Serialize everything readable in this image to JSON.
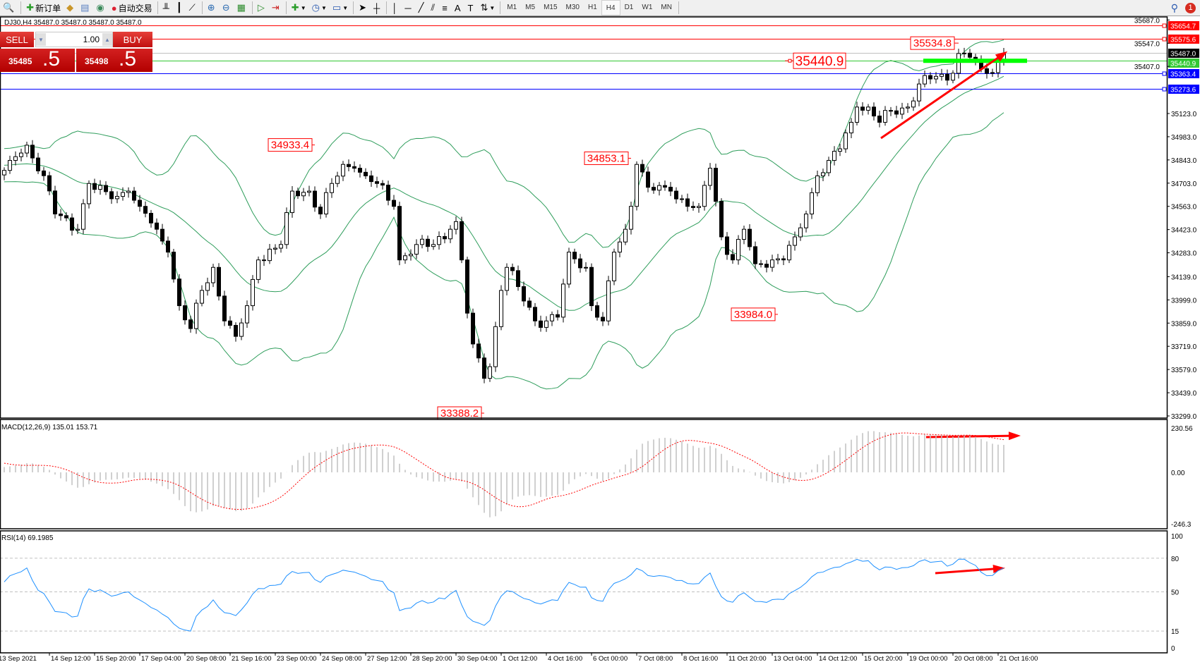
{
  "toolbar": {
    "new_order": "新订单",
    "auto_trading": "自动交易",
    "timeframes": [
      "M1",
      "M5",
      "M15",
      "M30",
      "H1",
      "H4",
      "D1",
      "W1",
      "MN"
    ],
    "active_timeframe": "H4",
    "notification_count": "1"
  },
  "chart": {
    "info": "DJ30,H4  35487.0 35487.0 35487.0 35487.0",
    "one_click": {
      "sell_label": "SELL",
      "buy_label": "BUY",
      "lot": "1.00",
      "sell_price_main": "35485",
      "sell_price_big": ".5",
      "buy_price_main": "35498",
      "buy_price_big": ".5"
    },
    "macd_label": "MACD(12,26,9) 135.01 153.71",
    "rsi_label": "RSI(14) 69.1985",
    "colors": {
      "bull": "#ffffff",
      "bear": "#000000",
      "bands": "#2e9d5b",
      "macd_hist": "#c0c0c0",
      "macd_signal": "#ff0000",
      "rsi": "#1e90ff",
      "arrow": "#ff0000",
      "highlight": "#00ff00"
    }
  },
  "chart_data": {
    "type": "candlestick",
    "symbol": "DJ30",
    "timeframe": "H4",
    "price_axis_ticks": [
      "35687.0",
      "35547.0",
      "35407.0",
      "35123.0",
      "34983.0",
      "34843.0",
      "34703.0",
      "34563.0",
      "34423.0",
      "34283.0",
      "34139.0",
      "33999.0",
      "33859.0",
      "33719.0",
      "33579.0",
      "33439.0",
      "33299.0"
    ],
    "price_range": [
      33299,
      35687
    ],
    "time_labels": [
      "13 Sep 2021",
      "14 Sep 12:00",
      "15 Sep 20:00",
      "17 Sep 04:00",
      "20 Sep 08:00",
      "21 Sep 16:00",
      "23 Sep 00:00",
      "24 Sep 08:00",
      "27 Sep 12:00",
      "28 Sep 20:00",
      "30 Sep 04:00",
      "1 Oct 12:00",
      "4 Oct 16:00",
      "6 Oct 00:00",
      "7 Oct 08:00",
      "8 Oct 16:00",
      "11 Oct 20:00",
      "13 Oct 04:00",
      "14 Oct 12:00",
      "15 Oct 20:00",
      "19 Oct 00:00",
      "20 Oct 08:00",
      "21 Oct 16:00"
    ],
    "bars_per_time_label": 8,
    "price_path": [
      [
        -30,
        34500
      ],
      [
        -15,
        34900
      ],
      [
        -5,
        34750
      ],
      [
        0,
        34780
      ],
      [
        1,
        34840
      ],
      [
        4,
        34932
      ],
      [
        7,
        34748
      ],
      [
        9,
        34517
      ],
      [
        13,
        34425
      ],
      [
        15,
        34701
      ],
      [
        19,
        34609
      ],
      [
        22,
        34655
      ],
      [
        24,
        34563
      ],
      [
        27,
        34425
      ],
      [
        29,
        34287
      ],
      [
        31,
        33964
      ],
      [
        33,
        33826
      ],
      [
        35,
        34056
      ],
      [
        37,
        34195
      ],
      [
        39,
        33872
      ],
      [
        41,
        33779
      ],
      [
        43,
        33964
      ],
      [
        45,
        34240
      ],
      [
        49,
        34333
      ],
      [
        51,
        34655
      ],
      [
        54,
        34655
      ],
      [
        56,
        34517
      ],
      [
        58,
        34701
      ],
      [
        60,
        34816
      ],
      [
        62,
        34793
      ],
      [
        64,
        34747
      ],
      [
        66,
        34701
      ],
      [
        69,
        34563
      ],
      [
        70,
        34240
      ],
      [
        73,
        34333
      ],
      [
        76,
        34333
      ],
      [
        79,
        34425
      ],
      [
        80,
        34471
      ],
      [
        81,
        34240
      ],
      [
        82,
        33919
      ],
      [
        83,
        33733
      ],
      [
        85,
        33526
      ],
      [
        86,
        33596
      ],
      [
        88,
        34056
      ],
      [
        89,
        34195
      ],
      [
        91,
        34079
      ],
      [
        94,
        33872
      ],
      [
        96,
        33872
      ],
      [
        98,
        33895
      ],
      [
        100,
        34287
      ],
      [
        103,
        34195
      ],
      [
        104,
        33964
      ],
      [
        106,
        33872
      ],
      [
        108,
        34287
      ],
      [
        110,
        34425
      ],
      [
        111,
        34563
      ],
      [
        112,
        34816
      ],
      [
        114,
        34678
      ],
      [
        118,
        34655
      ],
      [
        121,
        34563
      ],
      [
        123,
        34563
      ],
      [
        125,
        34793
      ],
      [
        127,
        34379
      ],
      [
        129,
        34240
      ],
      [
        131,
        34425
      ],
      [
        133,
        34217
      ],
      [
        136,
        34240
      ],
      [
        138,
        34240
      ],
      [
        140,
        34379
      ],
      [
        142,
        34517
      ],
      [
        144,
        34747
      ],
      [
        146,
        34840
      ],
      [
        148,
        34910
      ],
      [
        150,
        35070
      ],
      [
        151,
        35162
      ],
      [
        153,
        35162
      ],
      [
        155,
        35070
      ],
      [
        157,
        35139
      ],
      [
        160,
        35162
      ],
      [
        162,
        35301
      ],
      [
        165,
        35347
      ],
      [
        167,
        35324
      ],
      [
        169,
        35485
      ],
      [
        171,
        35462
      ],
      [
        173,
        35393
      ],
      [
        175,
        35370
      ],
      [
        177,
        35487
      ]
    ],
    "indicators": {
      "bollinger_bands": {
        "period": 20,
        "deviation": 2
      },
      "macd": {
        "fast": 12,
        "slow": 26,
        "signal": 9,
        "value": 135.01,
        "signal_value": 153.71,
        "axis": [
          "230.56",
          "0.00",
          "-246.3"
        ],
        "range": [
          -246.3,
          230.56
        ]
      },
      "rsi": {
        "period": 14,
        "value": 69.1985,
        "levels": [
          "80",
          "50",
          "15"
        ],
        "axis": [
          "100",
          "80",
          "50",
          "15",
          "0"
        ]
      }
    },
    "horizontal_lines": [
      {
        "price": "35654.7",
        "color": "#ff0000",
        "marker": true
      },
      {
        "price": "35575.6",
        "color": "#ff0000",
        "marker": true
      },
      {
        "price": "35487.0",
        "color": "#000000",
        "line": "#c0c0c0",
        "marker": false
      },
      {
        "price": "35440.9",
        "color": "#32c832",
        "line": "#32c832",
        "marker": false
      },
      {
        "price": "35363.4",
        "color": "#0000ff",
        "marker": true
      },
      {
        "price": "35273.6",
        "color": "#0000ff",
        "marker": true
      }
    ],
    "price_annotations": [
      {
        "text": "34933.4",
        "bar": 55
      },
      {
        "text": "34853.1",
        "bar": 111
      },
      {
        "text": "33388.2",
        "bar": 85
      },
      {
        "text": "33984.0",
        "bar": 137
      },
      {
        "text": "35534.8",
        "bar": 169
      },
      {
        "text": "35440.9",
        "bar": 145,
        "large": true
      }
    ]
  }
}
